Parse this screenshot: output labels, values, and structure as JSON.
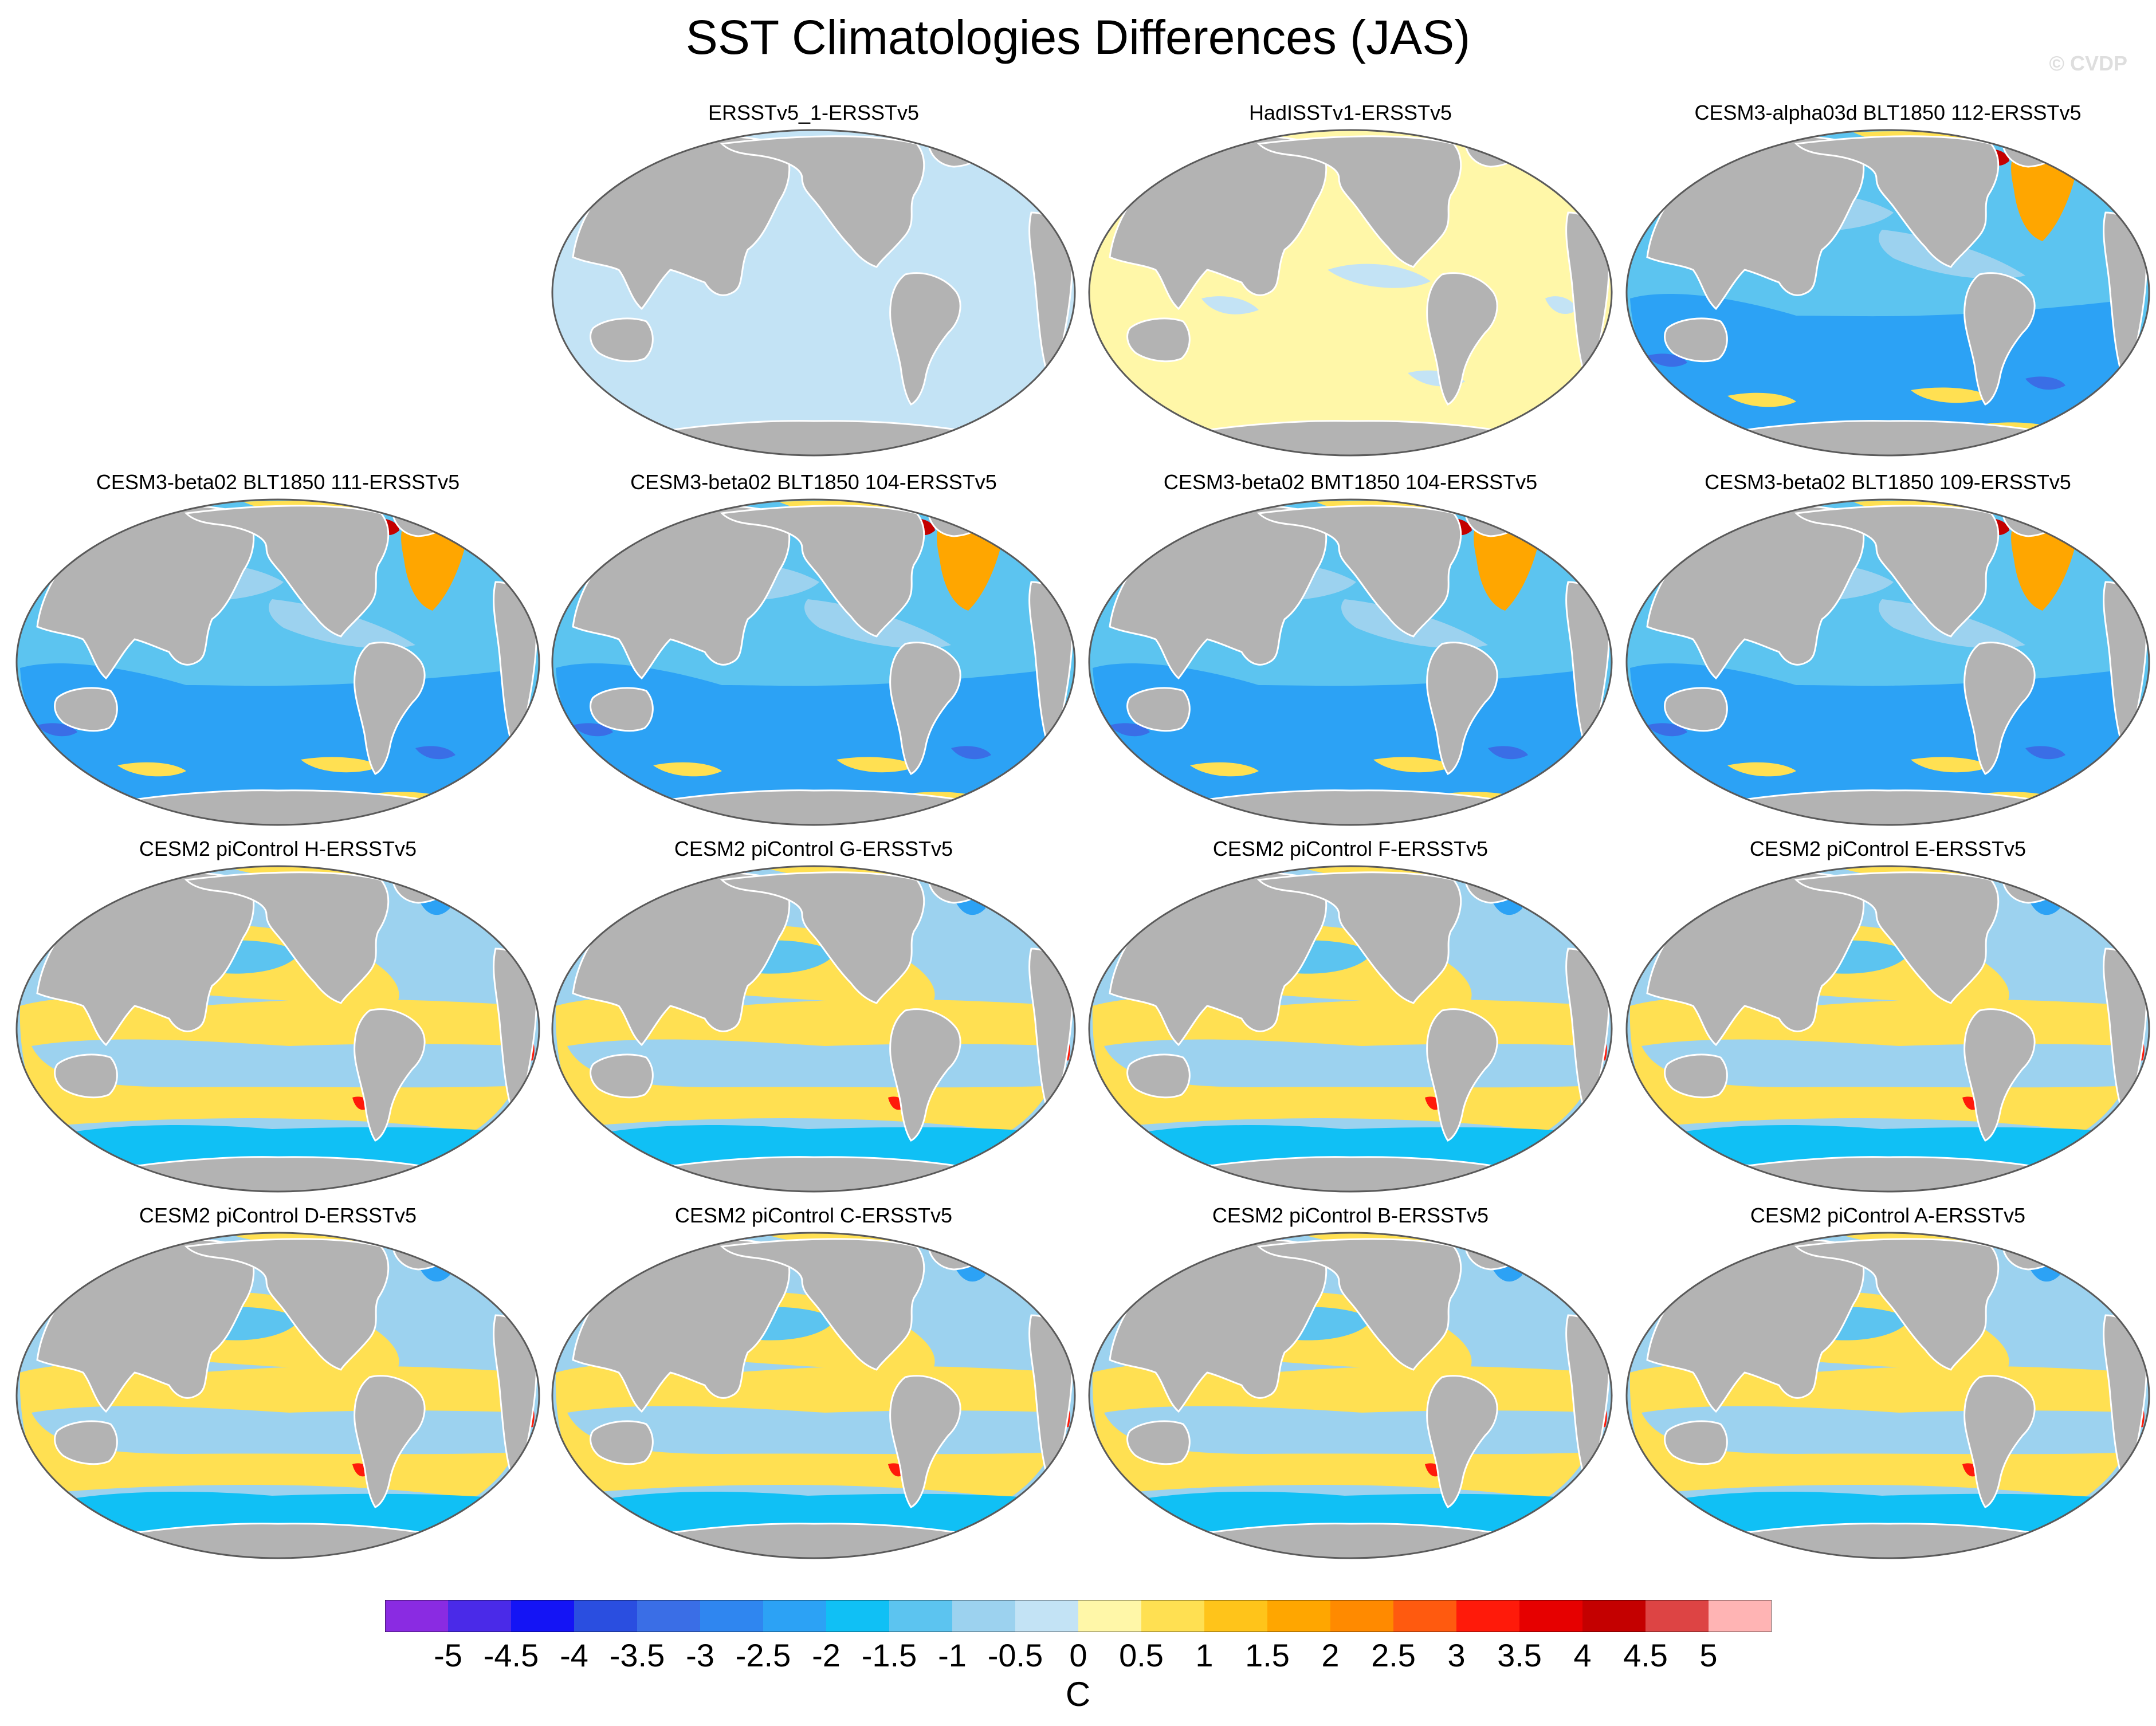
{
  "title": "SST Climatologies Differences (JAS)",
  "watermark": "© CVDP",
  "colors": {
    "land": "#b3b3b3",
    "land_edge": "#ffffff",
    "frame": "#5a5a5a"
  },
  "panels": [
    {
      "id": "p1",
      "title": "ERSSTv5_1-ERSSTv5",
      "pattern": "uniform-cool"
    },
    {
      "id": "p2",
      "title": "HadISSTv1-ERSSTv5",
      "pattern": "uniform-warm"
    },
    {
      "id": "p3",
      "title": "CESM3-alpha03d BLT1850 112-ERSSTv5",
      "pattern": "cesm3"
    },
    {
      "id": "p4",
      "title": "CESM3-beta02 BLT1850 111-ERSSTv5",
      "pattern": "cesm3"
    },
    {
      "id": "p5",
      "title": "CESM3-beta02 BLT1850 104-ERSSTv5",
      "pattern": "cesm3"
    },
    {
      "id": "p6",
      "title": "CESM3-beta02 BMT1850 104-ERSSTv5",
      "pattern": "cesm3"
    },
    {
      "id": "p7",
      "title": "CESM3-beta02 BLT1850 109-ERSSTv5",
      "pattern": "cesm3"
    },
    {
      "id": "p8",
      "title": "CESM2 piControl H-ERSSTv5",
      "pattern": "cesm2"
    },
    {
      "id": "p9",
      "title": "CESM2 piControl G-ERSSTv5",
      "pattern": "cesm2"
    },
    {
      "id": "p10",
      "title": "CESM2 piControl F-ERSSTv5",
      "pattern": "cesm2"
    },
    {
      "id": "p11",
      "title": "CESM2 piControl E-ERSSTv5",
      "pattern": "cesm2"
    },
    {
      "id": "p12",
      "title": "CESM2 piControl D-ERSSTv5",
      "pattern": "cesm2"
    },
    {
      "id": "p13",
      "title": "CESM2 piControl C-ERSSTv5",
      "pattern": "cesm2"
    },
    {
      "id": "p14",
      "title": "CESM2 piControl B-ERSSTv5",
      "pattern": "cesm2"
    },
    {
      "id": "p15",
      "title": "CESM2 piControl A-ERSSTv5",
      "pattern": "cesm2"
    }
  ],
  "colorbar": {
    "unit": "C",
    "labels": [
      "-5",
      "-4.5",
      "-4",
      "-3.5",
      "-3",
      "-2.5",
      "-2",
      "-1.5",
      "-1",
      "-0.5",
      "0",
      "0.5",
      "1",
      "1.5",
      "2",
      "2.5",
      "3",
      "3.5",
      "4",
      "4.5",
      "5"
    ],
    "colors": [
      "#8a2be2",
      "#4a2ae8",
      "#1414f5",
      "#2a4ee0",
      "#3a6ee6",
      "#2f86f0",
      "#2ca2f5",
      "#10c0f5",
      "#5cc4f0",
      "#9cd2ef",
      "#c3e3f5",
      "#fff7a8",
      "#ffe052",
      "#ffc41a",
      "#ffa600",
      "#ff8a00",
      "#ff5a0f",
      "#ff1a0a",
      "#e60000",
      "#c40000",
      "#dd4444",
      "#ffb4b4"
    ]
  }
}
